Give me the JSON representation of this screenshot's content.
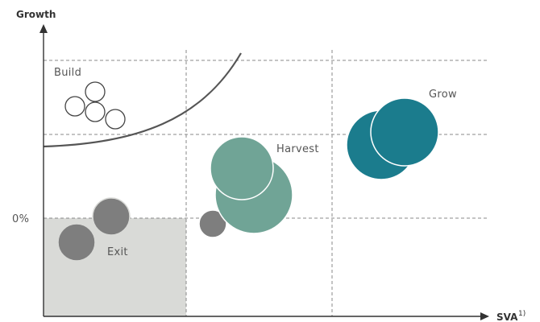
{
  "axes": {
    "y_title": "Growth",
    "x_title": "SVA",
    "x_title_superscript": "1)",
    "zero_label": "0%"
  },
  "zones": [
    {
      "label": "Build"
    },
    {
      "label": "Grow"
    },
    {
      "label": "Harvest"
    },
    {
      "label": "Exit"
    }
  ],
  "colors": {
    "axis": "#333333",
    "gridline": "#888888",
    "curve": "#555555",
    "exit_fill": "#d9dad7",
    "build_stroke": "#444444",
    "grow": "#1b7c8d",
    "harvest": "#70a496",
    "exit": "#7e7e7e"
  }
}
